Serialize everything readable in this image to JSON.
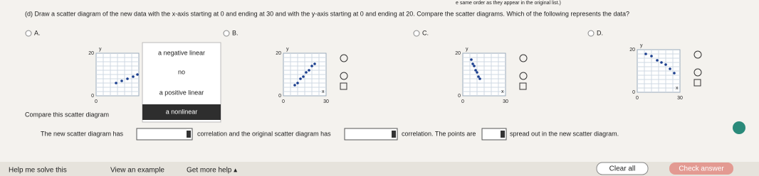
{
  "header_note": "e same order as they appear in the original list.)",
  "question": "(d) Draw a scatter diagram of the new data with the x-axis starting at 0 and ending at 30 and with the y-axis starting at 0 and ending at 20. Compare the scatter diagrams. Which of the following represents the data?",
  "axis": {
    "y_max": "20",
    "zero": "0",
    "x_max": "30",
    "y_name": "y",
    "x_name": "x"
  },
  "options": [
    {
      "label": "A.",
      "x": [
        14,
        18,
        22,
        26,
        29
      ],
      "y": [
        6,
        7,
        8,
        9,
        10
      ]
    },
    {
      "label": "B.",
      "x": [
        8,
        10,
        12,
        14,
        16,
        18,
        20,
        22
      ],
      "y": [
        5,
        6,
        8,
        9,
        11,
        12,
        14,
        15
      ]
    },
    {
      "label": "C.",
      "x": [
        6,
        7,
        8,
        9,
        10,
        11,
        12
      ],
      "y": [
        17,
        15,
        14,
        12,
        11,
        9,
        8
      ]
    },
    {
      "label": "D.",
      "x": [
        6,
        10,
        14,
        17,
        20,
        23,
        26
      ],
      "y": [
        18,
        17,
        15,
        14,
        13,
        11,
        9
      ]
    }
  ],
  "dropdown": [
    "a negative linear",
    "no",
    "a positive linear",
    "a nonlinear"
  ],
  "compare_text": "Compare this scatter diagram",
  "sentence": [
    "The new scatter diagram has",
    "correlation and the original scatter diagram has",
    "correlation. The points are",
    "spread out in the new scatter diagram."
  ],
  "footer": {
    "help": "Help me solve this",
    "example": "View an example",
    "more": "Get more help ▴",
    "clear": "Clear all",
    "check": "Check answer"
  }
}
